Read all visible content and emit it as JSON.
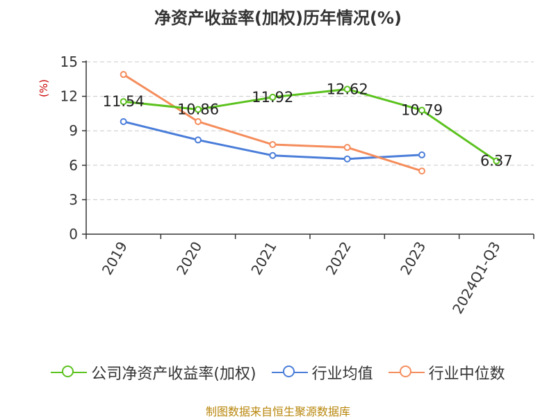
{
  "chart_data": {
    "type": "line",
    "title": "净资产收益率(加权)历年情况(%)",
    "ylabel": "(%)",
    "ylim": [
      0,
      15
    ],
    "yticks": [
      0,
      3,
      6,
      9,
      12,
      15
    ],
    "categories": [
      "2019",
      "2020",
      "2021",
      "2022",
      "2023",
      "2024Q1-Q3"
    ],
    "grid": true,
    "legend_position": "bottom",
    "series": [
      {
        "name": "公司净资产收益率(加权)",
        "color": "#5BC21E",
        "values": [
          11.54,
          10.86,
          11.92,
          12.62,
          10.79,
          6.37
        ],
        "show_labels": true
      },
      {
        "name": "行业均值",
        "color": "#4A7DD9",
        "values": [
          9.8,
          8.2,
          6.85,
          6.55,
          6.9,
          null
        ],
        "show_labels": false
      },
      {
        "name": "行业中位数",
        "color": "#F58D5C",
        "values": [
          13.9,
          9.8,
          7.8,
          7.55,
          5.5,
          null
        ],
        "show_labels": false
      }
    ]
  },
  "footer": {
    "source": "制图数据来自恒生聚源数据库"
  }
}
